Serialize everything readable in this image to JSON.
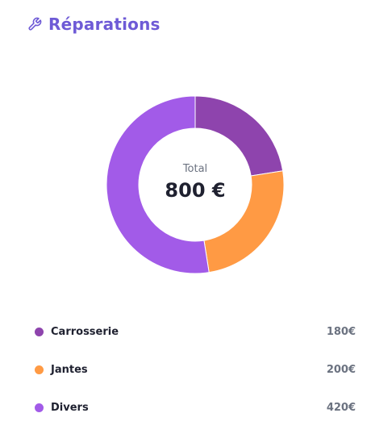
{
  "card": {
    "title": "Réparations",
    "icon": "wrench-icon",
    "accent_color": "#6e5ad6"
  },
  "center": {
    "label": "Total",
    "value": "800 €"
  },
  "chart_data": {
    "type": "pie",
    "variant": "donut",
    "categories": [
      "Carrosserie",
      "Jantes",
      "Divers"
    ],
    "values": [
      180,
      200,
      420
    ],
    "colors": [
      "#8e44ad",
      "#ff9a44",
      "#a25be8"
    ],
    "unit": "€",
    "total": 800
  },
  "legend": [
    {
      "label": "Carrosserie",
      "value": "180€",
      "color": "#8e44ad"
    },
    {
      "label": "Jantes",
      "value": "200€",
      "color": "#ff9a44"
    },
    {
      "label": "Divers",
      "value": "420€",
      "color": "#a25be8"
    }
  ]
}
